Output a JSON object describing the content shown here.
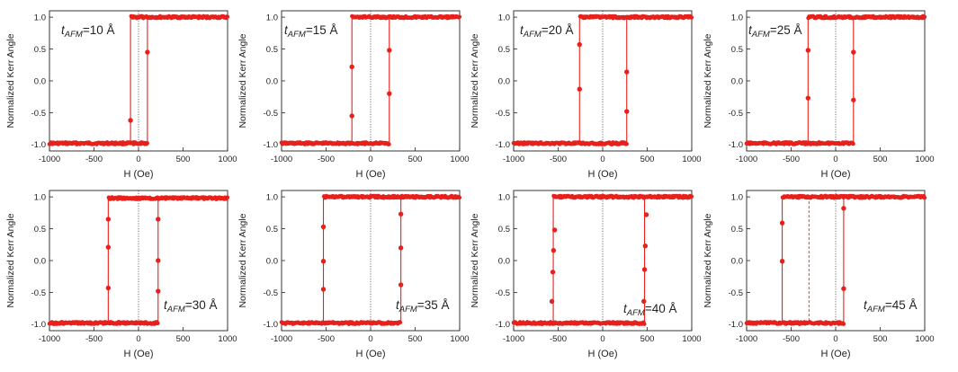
{
  "chart_data": [
    {
      "type": "scatter",
      "label_main": "t",
      "label_sub": "AFM",
      "label_value": "=10 Å",
      "ylabel": "Normalized Kerr Angle",
      "xlabel": "H (Oe)",
      "xlim": [
        -1000,
        1000
      ],
      "ylim": [
        -1.1,
        1.1
      ],
      "xticks": [
        -1000,
        -500,
        0,
        500,
        1000
      ],
      "yticks": [
        -1.0,
        -0.5,
        0.0,
        0.5,
        1.0
      ],
      "switch_descending": -90,
      "switch_ascending": 100,
      "sat_high": 1.0,
      "sat_low": -0.98,
      "transition_points": [
        {
          "x": -90,
          "y": -0.62
        },
        {
          "x": 100,
          "y": 0.45
        }
      ],
      "dotted_line_x": 0
    },
    {
      "type": "scatter",
      "label_main": "t",
      "label_sub": "AFM",
      "label_value": "=15 Å",
      "ylabel": "Normalized Kerr Angle",
      "xlabel": "H (Oe)",
      "xlim": [
        -1000,
        1000
      ],
      "ylim": [
        -1.1,
        1.1
      ],
      "xticks": [
        -1000,
        -500,
        0,
        500,
        1000
      ],
      "yticks": [
        -1.0,
        -0.5,
        0.0,
        0.5,
        1.0
      ],
      "switch_descending": -210,
      "switch_ascending": 210,
      "sat_high": 1.0,
      "sat_low": -0.98,
      "transition_points": [
        {
          "x": -210,
          "y": 0.22
        },
        {
          "x": -210,
          "y": -0.55
        },
        {
          "x": 210,
          "y": 0.48
        },
        {
          "x": 210,
          "y": -0.2
        }
      ],
      "dotted_line_x": 0
    },
    {
      "type": "scatter",
      "label_main": "t",
      "label_sub": "AFM",
      "label_value": "=20 Å",
      "ylabel": "Normalized Kerr Angle",
      "xlabel": "H (Oe)",
      "xlim": [
        -1000,
        1000
      ],
      "ylim": [
        -1.1,
        1.1
      ],
      "xticks": [
        -1000,
        -500,
        0,
        500,
        1000
      ],
      "yticks": [
        -1.0,
        -0.5,
        0.0,
        0.5,
        1.0
      ],
      "switch_descending": -260,
      "switch_ascending": 270,
      "sat_high": 1.0,
      "sat_low": -0.98,
      "transition_points": [
        {
          "x": -260,
          "y": 0.57
        },
        {
          "x": -260,
          "y": -0.13
        },
        {
          "x": 270,
          "y": 0.14
        },
        {
          "x": 270,
          "y": -0.48
        }
      ],
      "dotted_line_x": 0
    },
    {
      "type": "scatter",
      "label_main": "t",
      "label_sub": "AFM",
      "label_value": "=25 Å",
      "ylabel": "Normalized Kerr Angle",
      "xlabel": "H (Oe)",
      "xlim": [
        -1000,
        1000
      ],
      "ylim": [
        -1.1,
        1.1
      ],
      "xticks": [
        -1000,
        -500,
        0,
        500,
        1000
      ],
      "yticks": [
        -1.0,
        -0.5,
        0.0,
        0.5,
        1.0
      ],
      "switch_descending": -310,
      "switch_ascending": 200,
      "sat_high": 1.0,
      "sat_low": -0.98,
      "transition_points": [
        {
          "x": -310,
          "y": 0.48
        },
        {
          "x": -310,
          "y": -0.27
        },
        {
          "x": 200,
          "y": 0.45
        },
        {
          "x": 200,
          "y": -0.3
        }
      ],
      "dotted_line_x": 0
    },
    {
      "type": "scatter",
      "label_main": "t",
      "label_sub": "AFM",
      "label_value": "=30 Å",
      "ylabel": "Normalized Kerr Angle",
      "xlabel": "H (Oe)",
      "xlim": [
        -1000,
        1000
      ],
      "ylim": [
        -1.1,
        1.1
      ],
      "xticks": [
        -1000,
        -500,
        0,
        500,
        1000
      ],
      "yticks": [
        -1.0,
        -0.5,
        0.0,
        0.5,
        1.0
      ],
      "switch_descending": -340,
      "switch_ascending": 220,
      "sat_high": 0.98,
      "sat_low": -0.98,
      "transition_points": [
        {
          "x": -340,
          "y": 0.65
        },
        {
          "x": -340,
          "y": 0.21
        },
        {
          "x": -340,
          "y": -0.43
        },
        {
          "x": 220,
          "y": 0.65
        },
        {
          "x": 220,
          "y": 0.0
        },
        {
          "x": 220,
          "y": -0.48
        }
      ],
      "dotted_line_x": 0
    },
    {
      "type": "scatter",
      "label_main": "t",
      "label_sub": "AFM",
      "label_value": "=35 Å",
      "ylabel": "Normalized Kerr Angle",
      "xlabel": "H (Oe)",
      "xlim": [
        -1000,
        1000
      ],
      "ylim": [
        -1.1,
        1.1
      ],
      "xticks": [
        -1000,
        -500,
        0,
        500,
        1000
      ],
      "yticks": [
        -1.0,
        -0.5,
        0.0,
        0.5,
        1.0
      ],
      "switch_descending": -530,
      "switch_ascending": 340,
      "sat_high": 1.0,
      "sat_low": -0.98,
      "transition_points": [
        {
          "x": -530,
          "y": 0.53
        },
        {
          "x": -530,
          "y": -0.01
        },
        {
          "x": -530,
          "y": -0.45
        },
        {
          "x": 340,
          "y": 0.73
        },
        {
          "x": 340,
          "y": 0.2
        },
        {
          "x": 340,
          "y": -0.38
        }
      ],
      "dotted_line_x": 0
    },
    {
      "type": "scatter",
      "label_main": "t",
      "label_sub": "AFM",
      "label_value": "=40 Å",
      "ylabel": "Normalized Kerr Angle",
      "xlabel": "H (Oe)",
      "xlim": [
        -1000,
        1000
      ],
      "ylim": [
        -1.1,
        1.1
      ],
      "xticks": [
        -1000,
        -500,
        0,
        500,
        1000
      ],
      "yticks": [
        -1.0,
        -0.5,
        0.0,
        0.5,
        1.0
      ],
      "switch_descending": -555,
      "switch_ascending": 470,
      "sat_high": 1.0,
      "sat_low": -0.98,
      "transition_points": [
        {
          "x": -540,
          "y": 0.48
        },
        {
          "x": -552,
          "y": 0.16
        },
        {
          "x": -560,
          "y": -0.18
        },
        {
          "x": -570,
          "y": -0.64
        },
        {
          "x": 490,
          "y": 0.72
        },
        {
          "x": 478,
          "y": 0.23
        },
        {
          "x": 470,
          "y": -0.14
        },
        {
          "x": 462,
          "y": -0.64
        }
      ],
      "dotted_line_x": 0
    },
    {
      "type": "scatter",
      "label_main": "t",
      "label_sub": "AFM",
      "label_value": "=45 Å",
      "ylabel": "Normalized Kerr Angle",
      "xlabel": "H (Oe)",
      "xlim": [
        -1000,
        1000
      ],
      "ylim": [
        -1.1,
        1.1
      ],
      "xticks": [
        -1000,
        -500,
        0,
        500,
        1000
      ],
      "yticks": [
        -1.0,
        -0.5,
        0.0,
        0.5,
        1.0
      ],
      "switch_descending": -600,
      "switch_ascending": 90,
      "sat_high": 1.0,
      "sat_low": -0.98,
      "transition_points": [
        {
          "x": -600,
          "y": 0.59
        },
        {
          "x": -600,
          "y": -0.01
        },
        {
          "x": 90,
          "y": 0.82
        },
        {
          "x": 90,
          "y": -0.44
        }
      ],
      "dotted_line_x": 0,
      "dashed_line_x": -300
    }
  ],
  "colors": {
    "data": "#e8201c",
    "axis": "#222222",
    "guide": "#333333"
  }
}
